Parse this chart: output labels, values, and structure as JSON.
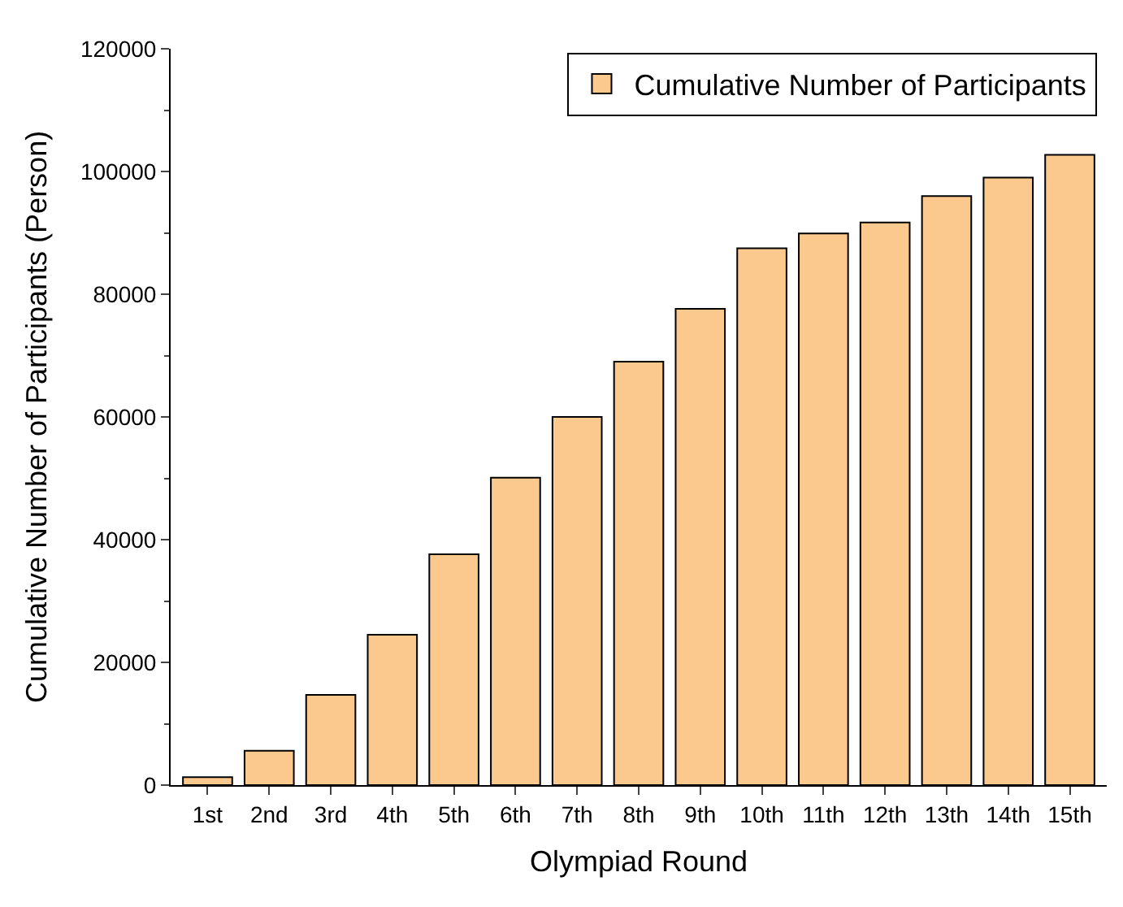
{
  "chart_data": {
    "type": "bar",
    "xlabel": "Olympiad Round",
    "ylabel": "Cumulative Number of Participants (Person)",
    "categories": [
      "1st",
      "2nd",
      "3rd",
      "4th",
      "5th",
      "6th",
      "7th",
      "8th",
      "9th",
      "10th",
      "11th",
      "12th",
      "13th",
      "14th",
      "15th"
    ],
    "series": [
      {
        "name": "Cumulative Number of Participants",
        "color": "#fbc98e",
        "values": [
          1300,
          5600,
          14700,
          24500,
          37600,
          50100,
          60000,
          69000,
          77600,
          87500,
          89900,
          91700,
          96000,
          99000,
          102700
        ]
      }
    ],
    "ylim": [
      0,
      120000
    ],
    "yticks": [
      0,
      20000,
      40000,
      60000,
      80000,
      100000,
      120000
    ],
    "legend": "top right"
  }
}
